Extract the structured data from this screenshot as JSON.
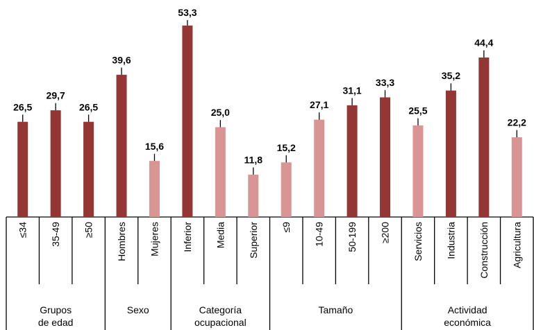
{
  "chart_data": {
    "type": "grouped-bar",
    "ylim": [
      0,
      55
    ],
    "groups": [
      {
        "label": [
          "Grupos",
          "de edad"
        ],
        "categories": [
          "≤34",
          "35-49",
          "≥50"
        ],
        "values": [
          26.5,
          29.7,
          26.5
        ],
        "value_labels": [
          "26,5",
          "29,7",
          "26,5"
        ],
        "errors": [
          2,
          2,
          2
        ],
        "colors": [
          "#943634",
          "#943634",
          "#943634"
        ]
      },
      {
        "label": [
          "Sexo"
        ],
        "categories": [
          "Hombres",
          "Mujeres"
        ],
        "values": [
          39.6,
          15.6
        ],
        "value_labels": [
          "39,6",
          "15,6"
        ],
        "errors": [
          2,
          2
        ],
        "colors": [
          "#943634",
          "#d99594"
        ]
      },
      {
        "label": [
          "Categoría",
          "ocupacional"
        ],
        "categories": [
          "Inferior",
          "Media",
          "Superior"
        ],
        "values": [
          53.3,
          25.0,
          11.8
        ],
        "value_labels": [
          "53,3",
          "25,0",
          "11,8"
        ],
        "errors": [
          1.5,
          2,
          2
        ],
        "colors": [
          "#943634",
          "#d99594",
          "#d99594"
        ]
      },
      {
        "label": [
          "Tamaño"
        ],
        "categories": [
          "≤9",
          "10-49",
          "50-199",
          "≥200"
        ],
        "values": [
          15.2,
          27.1,
          31.1,
          33.3
        ],
        "value_labels": [
          "15,2",
          "27,1",
          "31,1",
          "33,3"
        ],
        "errors": [
          2,
          2,
          2,
          2
        ],
        "colors": [
          "#d99594",
          "#d99594",
          "#943634",
          "#943634"
        ]
      },
      {
        "label": [
          "Actividad",
          "económica"
        ],
        "categories": [
          "Servicios",
          "Industria",
          "Construcción",
          "Agricultura"
        ],
        "values": [
          25.5,
          35.2,
          44.4,
          22.2
        ],
        "value_labels": [
          "25,5",
          "35,2",
          "44,4",
          "22,2"
        ],
        "errors": [
          2,
          2,
          2,
          2
        ],
        "colors": [
          "#d99594",
          "#943634",
          "#943634",
          "#d99594"
        ]
      }
    ]
  }
}
